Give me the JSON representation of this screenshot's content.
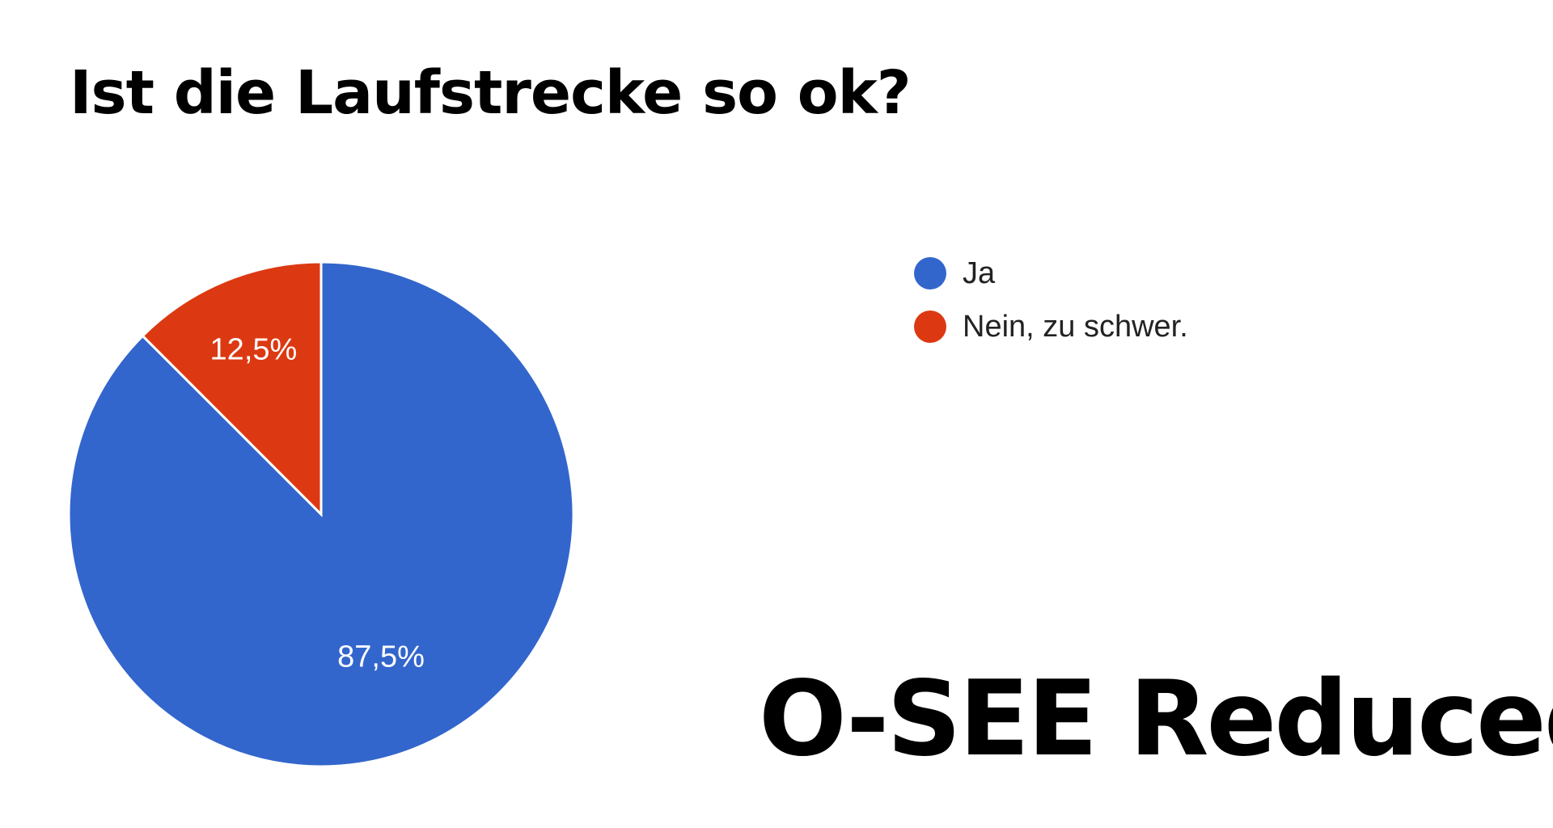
{
  "chart_data": {
    "type": "pie",
    "title": "Ist die Laufstrecke so ok?",
    "categories": [
      "Ja",
      "Nein, zu schwer."
    ],
    "values": [
      87.5,
      12.5
    ],
    "slice_labels": [
      "87,5%",
      "12,5%"
    ],
    "colors": [
      "#3366cc",
      "#dc3912"
    ],
    "legend_position": "right"
  },
  "watermark": {
    "text": "O-SEE Reduced"
  }
}
